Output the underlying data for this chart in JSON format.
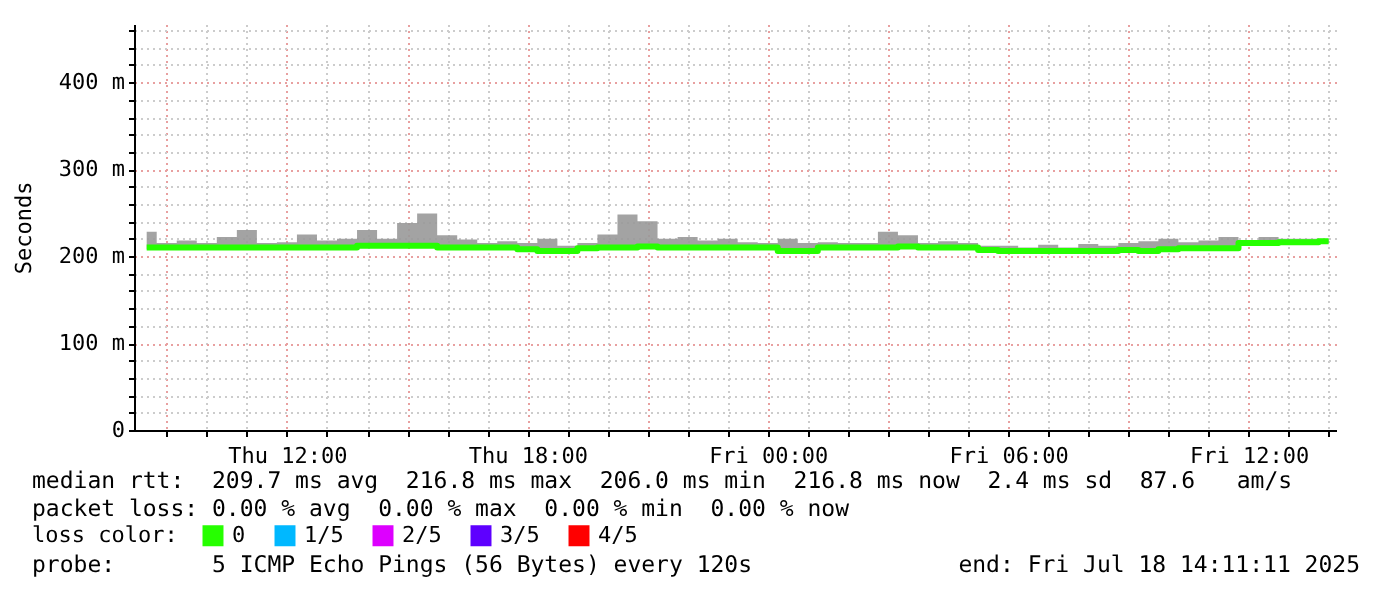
{
  "chart_data": {
    "type": "line",
    "ylabel": "Seconds",
    "legend_title": "loss color:",
    "legend": "bottom",
    "grid": true,
    "line_style": "solid",
    "marker": "none",
    "annotations": [
      "median rtt:  209.7 ms avg  216.8 ms max  206.0 ms min  216.8 ms now  2.4 ms sd  87.6   am/s",
      "packet loss: 0.00 % avg  0.00 % max  0.00 % min  0.00 % now",
      "probe:       5 ICMP Echo Pings (56 Bytes) every 120s",
      "end: Fri Jul 18 14:11:11 2025"
    ],
    "xlim": [
      "2025-07-17T08:11",
      "2025-07-18T14:11"
    ],
    "xticks": [
      {
        "value": "2025-07-17T09:00",
        "label": null
      },
      {
        "value": "2025-07-17T10:00",
        "label": null
      },
      {
        "value": "2025-07-17T11:00",
        "label": null
      },
      {
        "value": "2025-07-17T12:00",
        "label": "Thu 12:00"
      },
      {
        "value": "2025-07-17T13:00",
        "label": null
      },
      {
        "value": "2025-07-17T14:00",
        "label": null
      },
      {
        "value": "2025-07-17T15:00",
        "label": null
      },
      {
        "value": "2025-07-17T16:00",
        "label": null
      },
      {
        "value": "2025-07-17T17:00",
        "label": null
      },
      {
        "value": "2025-07-17T18:00",
        "label": "Thu 18:00"
      },
      {
        "value": "2025-07-17T19:00",
        "label": null
      },
      {
        "value": "2025-07-17T20:00",
        "label": null
      },
      {
        "value": "2025-07-17T21:00",
        "label": null
      },
      {
        "value": "2025-07-17T22:00",
        "label": null
      },
      {
        "value": "2025-07-17T23:00",
        "label": null
      },
      {
        "value": "2025-07-18T00:00",
        "label": "Fri 00:00"
      },
      {
        "value": "2025-07-18T01:00",
        "label": null
      },
      {
        "value": "2025-07-18T02:00",
        "label": null
      },
      {
        "value": "2025-07-18T03:00",
        "label": null
      },
      {
        "value": "2025-07-18T04:00",
        "label": null
      },
      {
        "value": "2025-07-18T05:00",
        "label": null
      },
      {
        "value": "2025-07-18T06:00",
        "label": "Fri 06:00"
      },
      {
        "value": "2025-07-18T07:00",
        "label": null
      },
      {
        "value": "2025-07-18T08:00",
        "label": null
      },
      {
        "value": "2025-07-18T09:00",
        "label": null
      },
      {
        "value": "2025-07-18T10:00",
        "label": null
      },
      {
        "value": "2025-07-18T11:00",
        "label": null
      },
      {
        "value": "2025-07-18T12:00",
        "label": "Fri 12:00"
      },
      {
        "value": "2025-07-18T13:00",
        "label": null
      },
      {
        "value": "2025-07-18T14:00",
        "label": null
      }
    ],
    "ylim": [
      0,
      467
    ],
    "yticks": [
      0,
      {
        "value": 20,
        "label": null
      },
      {
        "value": 40,
        "label": null
      },
      {
        "value": 60,
        "label": null
      },
      {
        "value": 80,
        "label": null
      },
      {
        "value": 100,
        "label": "100 m"
      },
      {
        "value": 120,
        "label": null
      },
      {
        "value": 140,
        "label": null
      },
      {
        "value": 160,
        "label": null
      },
      {
        "value": 180,
        "label": null
      },
      {
        "value": 200,
        "label": "200 m"
      },
      {
        "value": 220,
        "label": null
      },
      {
        "value": 240,
        "label": null
      },
      {
        "value": 260,
        "label": null
      },
      {
        "value": 280,
        "label": null
      },
      {
        "value": 300,
        "label": "300 m"
      },
      {
        "value": 320,
        "label": null
      },
      {
        "value": 340,
        "label": null
      },
      {
        "value": 360,
        "label": null
      },
      {
        "value": 380,
        "label": null
      },
      {
        "value": 400,
        "label": "400 m"
      },
      {
        "value": 420,
        "label": null
      },
      {
        "value": 440,
        "label": null
      },
      {
        "value": 460,
        "label": null
      }
    ],
    "x": [
      "2025-07-17T08:30",
      "2025-07-17T09:00",
      "2025-07-17T09:30",
      "2025-07-17T10:00",
      "2025-07-17T10:30",
      "2025-07-17T11:00",
      "2025-07-17T11:30",
      "2025-07-17T12:00",
      "2025-07-17T12:30",
      "2025-07-17T13:00",
      "2025-07-17T13:30",
      "2025-07-17T14:00",
      "2025-07-17T14:30",
      "2025-07-17T15:00",
      "2025-07-17T15:30",
      "2025-07-17T16:00",
      "2025-07-17T16:30",
      "2025-07-17T17:00",
      "2025-07-17T17:30",
      "2025-07-17T18:00",
      "2025-07-17T18:30",
      "2025-07-17T19:00",
      "2025-07-17T19:30",
      "2025-07-17T20:00",
      "2025-07-17T20:30",
      "2025-07-17T21:00",
      "2025-07-17T21:30",
      "2025-07-17T22:00",
      "2025-07-17T22:30",
      "2025-07-17T23:00",
      "2025-07-17T23:30",
      "2025-07-18T00:00",
      "2025-07-18T00:30",
      "2025-07-18T01:00",
      "2025-07-18T01:30",
      "2025-07-18T02:00",
      "2025-07-18T02:30",
      "2025-07-18T03:00",
      "2025-07-18T03:30",
      "2025-07-18T04:00",
      "2025-07-18T04:30",
      "2025-07-18T05:00",
      "2025-07-18T05:30",
      "2025-07-18T06:00",
      "2025-07-18T06:30",
      "2025-07-18T07:00",
      "2025-07-18T07:30",
      "2025-07-18T08:00",
      "2025-07-18T08:30",
      "2025-07-18T09:00",
      "2025-07-18T09:30",
      "2025-07-18T10:00",
      "2025-07-18T10:30",
      "2025-07-18T11:00",
      "2025-07-18T11:30",
      "2025-07-18T12:00",
      "2025-07-18T12:30",
      "2025-07-18T13:00",
      "2025-07-18T13:30",
      "2025-07-18T14:00"
    ],
    "series": [
      {
        "name": "0",
        "color": "#26ff00",
        "values": [
          210,
          210,
          210,
          210,
          210,
          210,
          210,
          210,
          210,
          210,
          210,
          212,
          212,
          212,
          212,
          210,
          210,
          210,
          210,
          208,
          206,
          206,
          209,
          210,
          210,
          211,
          210,
          210,
          210,
          210,
          210,
          210,
          206,
          206,
          210,
          210,
          210,
          210,
          211,
          210,
          210,
          210,
          207,
          206,
          206,
          206,
          206,
          206,
          206,
          207,
          206,
          208,
          209,
          209,
          209,
          215,
          215,
          216,
          216,
          217
        ],
        "lower": [
          208,
          208,
          208,
          208,
          208,
          208,
          208,
          208,
          208,
          208,
          208,
          210,
          210,
          210,
          210,
          208,
          208,
          208,
          208,
          206,
          204,
          204,
          207,
          208,
          208,
          209,
          208,
          208,
          208,
          208,
          208,
          208,
          204,
          204,
          208,
          208,
          208,
          208,
          209,
          208,
          208,
          208,
          205,
          204,
          204,
          204,
          204,
          204,
          204,
          205,
          204,
          206,
          207,
          207,
          207,
          213,
          213,
          214,
          214,
          215
        ],
        "upper": [
          228,
          215,
          218,
          215,
          222,
          230,
          215,
          216,
          225,
          218,
          220,
          230,
          220,
          238,
          249,
          224,
          219,
          215,
          217,
          215,
          220,
          212,
          215,
          225,
          248,
          240,
          220,
          222,
          218,
          220,
          216,
          215,
          220,
          215,
          216,
          215,
          215,
          228,
          224,
          215,
          217,
          215,
          212,
          212,
          210,
          213,
          210,
          214,
          212,
          215,
          217,
          220,
          216,
          218,
          222,
          218,
          222,
          220,
          220,
          220
        ]
      },
      {
        "name": "1/5",
        "color": "#00b8ff",
        "values": [
          null,
          null,
          null,
          null,
          null,
          null,
          null,
          null,
          null,
          null,
          null,
          null,
          null,
          null,
          null,
          null,
          null,
          null,
          null,
          null,
          null,
          null,
          null,
          null,
          null,
          null,
          null,
          null,
          null,
          null,
          null,
          null,
          null,
          null,
          null,
          null,
          null,
          null,
          null,
          null,
          null,
          null,
          null,
          null,
          null,
          null,
          null,
          null,
          null,
          null,
          null,
          null,
          null,
          null,
          null,
          null,
          null,
          null,
          null,
          null
        ]
      },
      {
        "name": "2/5",
        "color": "#dd00ff",
        "values": [
          null,
          null,
          null,
          null,
          null,
          null,
          null,
          null,
          null,
          null,
          null,
          null,
          null,
          null,
          null,
          null,
          null,
          null,
          null,
          null,
          null,
          null,
          null,
          null,
          null,
          null,
          null,
          null,
          null,
          null,
          null,
          null,
          null,
          null,
          null,
          null,
          null,
          null,
          null,
          null,
          null,
          null,
          null,
          null,
          null,
          null,
          null,
          null,
          null,
          null,
          null,
          null,
          null,
          null,
          null,
          null,
          null,
          null,
          null,
          null
        ]
      },
      {
        "name": "3/5",
        "color": "#5e00ff",
        "values": [
          null,
          null,
          null,
          null,
          null,
          null,
          null,
          null,
          null,
          null,
          null,
          null,
          null,
          null,
          null,
          null,
          null,
          null,
          null,
          null,
          null,
          null,
          null,
          null,
          null,
          null,
          null,
          null,
          null,
          null,
          null,
          null,
          null,
          null,
          null,
          null,
          null,
          null,
          null,
          null,
          null,
          null,
          null,
          null,
          null,
          null,
          null,
          null,
          null,
          null,
          null,
          null,
          null,
          null,
          null,
          null,
          null,
          null,
          null,
          null
        ]
      },
      {
        "name": "4/5",
        "color": "#ff0000",
        "values": [
          null,
          null,
          null,
          null,
          null,
          null,
          null,
          null,
          null,
          null,
          null,
          null,
          null,
          null,
          null,
          null,
          null,
          null,
          null,
          null,
          null,
          null,
          null,
          null,
          null,
          null,
          null,
          null,
          null,
          null,
          null,
          null,
          null,
          null,
          null,
          null,
          null,
          null,
          null,
          null,
          null,
          null,
          null,
          null,
          null,
          null,
          null,
          null,
          null,
          null,
          null,
          null,
          null,
          null,
          null,
          null,
          null,
          null,
          null,
          null
        ]
      }
    ]
  }
}
